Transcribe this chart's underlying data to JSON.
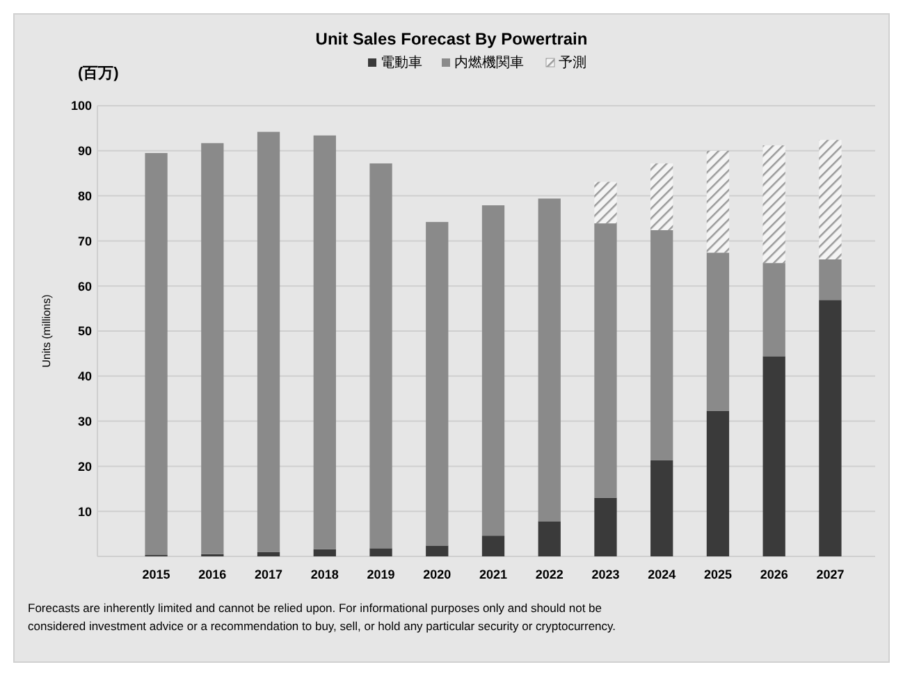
{
  "chart_data": {
    "type": "bar",
    "title": "Unit Sales Forecast By Powertrain",
    "ylabel": "Units (millions)",
    "annotations": [
      "(百万)",
      "Forecasts are inherently limited and cannot be relied upon. For informational purposes only and should not be considered investment advice or a recommendation to buy, sell, or hold any particular security or cryptocurrency."
    ],
    "categories": [
      "2015",
      "2016",
      "2017",
      "2018",
      "2019",
      "2020",
      "2021",
      "2022",
      "2023",
      "2024",
      "2025",
      "2026",
      "2027"
    ],
    "stacked": true,
    "series": [
      {
        "name": "電動車",
        "color": "#3a3a3a",
        "values": [
          0.3,
          0.5,
          1.0,
          1.6,
          1.8,
          2.4,
          4.6,
          7.8,
          13.0,
          21.3,
          32.3,
          44.4,
          56.9
        ]
      },
      {
        "name": "内燃機関車",
        "color": "#8a8a8a",
        "values": [
          89.2,
          91.2,
          93.2,
          91.8,
          85.4,
          71.8,
          73.3,
          71.6,
          60.9,
          51.1,
          35.1,
          20.7,
          9.0
        ]
      },
      {
        "name": "予測",
        "color": "#9a9a9a",
        "values": [
          null,
          null,
          null,
          null,
          null,
          null,
          null,
          null,
          9.2,
          14.8,
          22.6,
          26.1,
          26.5
        ]
      }
    ],
    "ylim": [
      0,
      100
    ],
    "yticks": [
      {
        "value": 0,
        "label": null
      },
      10,
      20,
      30,
      40,
      50,
      60,
      70,
      80,
      90,
      100
    ],
    "grid": "y",
    "legend": "top"
  }
}
